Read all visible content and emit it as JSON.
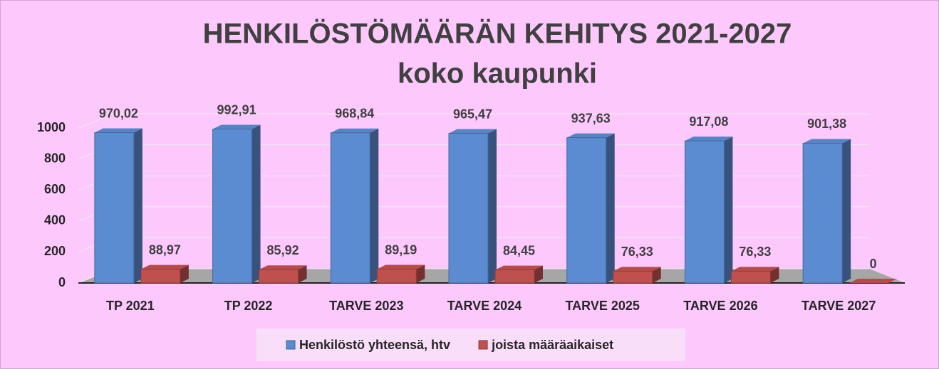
{
  "chart_data": {
    "type": "bar",
    "title": "HENKILÖSTÖMÄÄRÄN KEHITYS 2021-2027",
    "subtitle": "koko kaupunki",
    "categories": [
      "TP 2021",
      "TP 2022",
      "TARVE 2023",
      "TARVE 2024",
      "TARVE 2025",
      "TARVE 2026",
      "TARVE 2027"
    ],
    "series": [
      {
        "name": "Henkilöstö yhteensä, htv",
        "color": "#5b8bd0",
        "values": [
          970.02,
          992.91,
          968.84,
          965.47,
          937.63,
          917.08,
          901.38
        ],
        "value_labels": [
          "970,02",
          "992,91",
          "968,84",
          "965,47",
          "937,63",
          "917,08",
          "901,38"
        ]
      },
      {
        "name": "joista määräaikaiset",
        "color": "#c0504d",
        "values": [
          88.97,
          85.92,
          89.19,
          84.45,
          76.33,
          76.33,
          0
        ],
        "value_labels": [
          "88,97",
          "85,92",
          "89,19",
          "84,45",
          "76,33",
          "76,33",
          "0"
        ]
      }
    ],
    "ylim": [
      0,
      1000
    ],
    "yticks": [
      0,
      200,
      400,
      600,
      800,
      1000
    ],
    "grid": true,
    "legend": "bottom"
  }
}
